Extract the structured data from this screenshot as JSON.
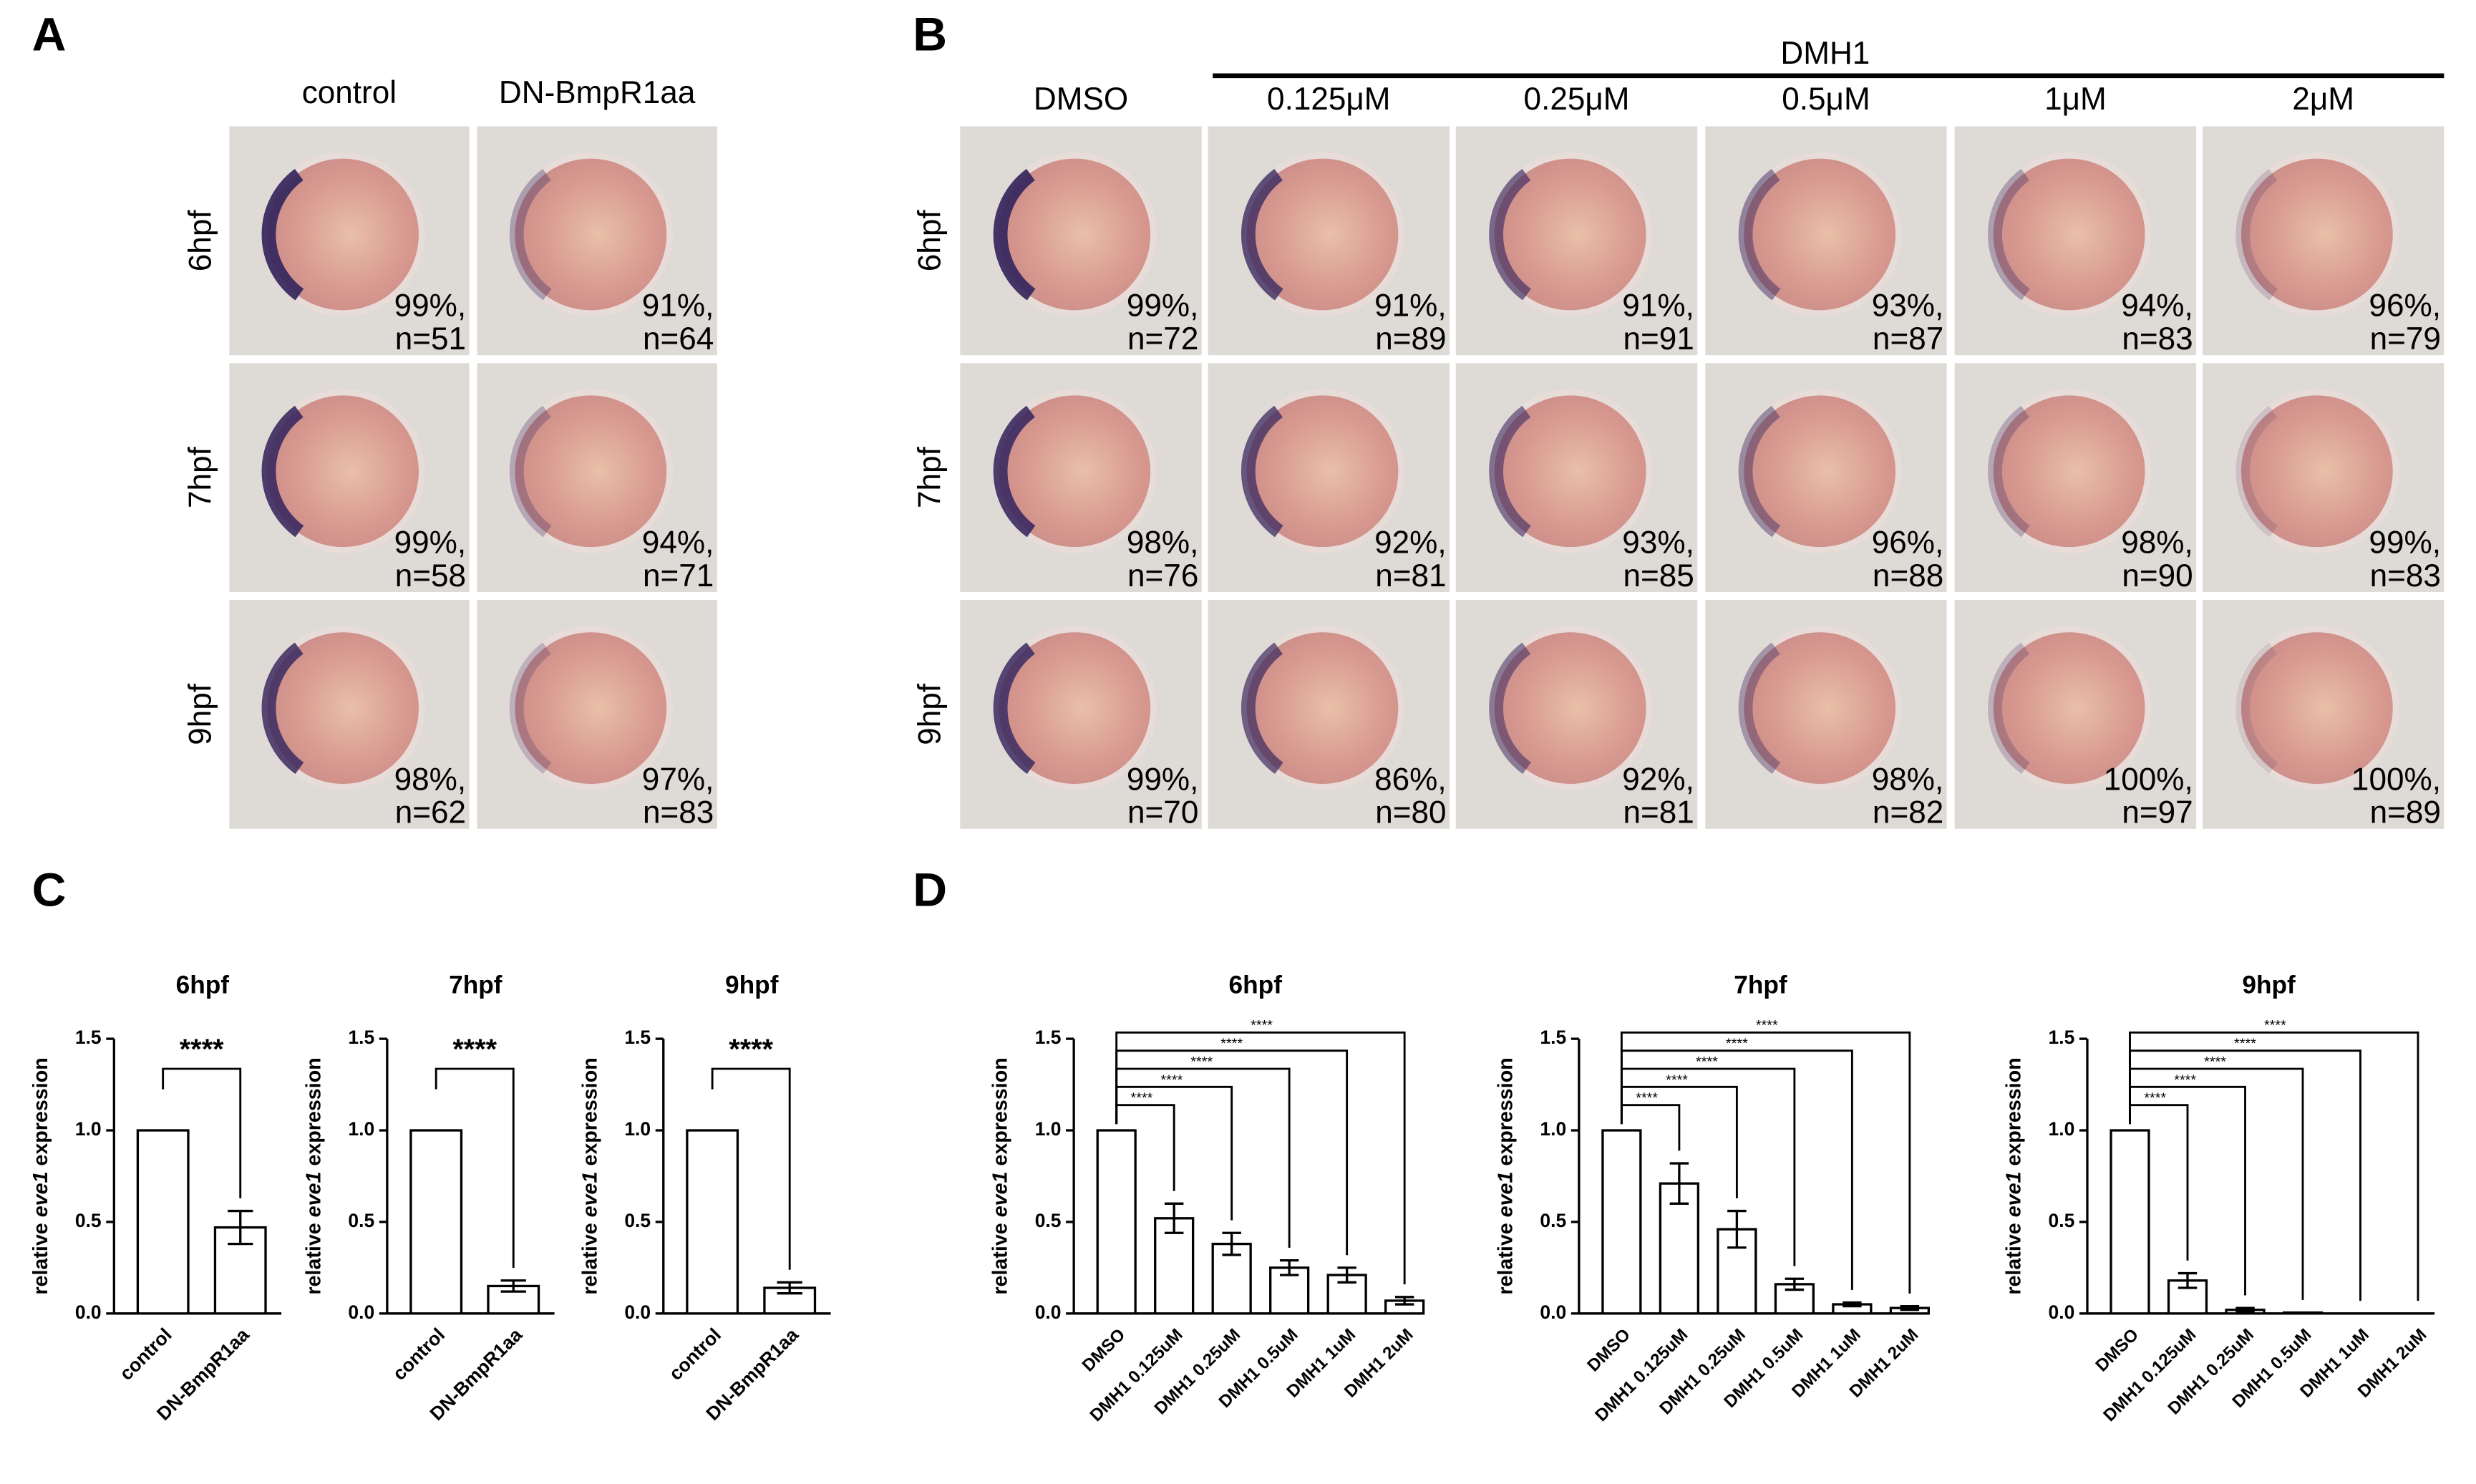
{
  "figure": {
    "A": {
      "label": "A",
      "columns": [
        "control",
        "DN-BmpR1aa"
      ],
      "rows": [
        "6hpf",
        "7hpf",
        "9hpf"
      ],
      "cells": [
        [
          {
            "pct": "99%,",
            "n": "n=51"
          },
          {
            "pct": "91%,",
            "n": "n=64"
          }
        ],
        [
          {
            "pct": "99%,",
            "n": "n=58"
          },
          {
            "pct": "94%,",
            "n": "n=71"
          }
        ],
        [
          {
            "pct": "98%,",
            "n": "n=62"
          },
          {
            "pct": "97%,",
            "n": "n=83"
          }
        ]
      ]
    },
    "B": {
      "label": "B",
      "group": "DMH1",
      "columns": [
        "DMSO",
        "0.125μM",
        "0.25μM",
        "0.5μM",
        "1μM",
        "2μM"
      ],
      "rows": [
        "6hpf",
        "7hpf",
        "9hpf"
      ],
      "cells": [
        [
          {
            "pct": "99%,",
            "n": "n=72"
          },
          {
            "pct": "91%,",
            "n": "n=89"
          },
          {
            "pct": "91%,",
            "n": "n=91"
          },
          {
            "pct": "93%,",
            "n": "n=87"
          },
          {
            "pct": "94%,",
            "n": "n=83"
          },
          {
            "pct": "96%,",
            "n": "n=79"
          }
        ],
        [
          {
            "pct": "98%,",
            "n": "n=76"
          },
          {
            "pct": "92%,",
            "n": "n=81"
          },
          {
            "pct": "93%,",
            "n": "n=85"
          },
          {
            "pct": "96%,",
            "n": "n=88"
          },
          {
            "pct": "98%,",
            "n": "n=90"
          },
          {
            "pct": "99%,",
            "n": "n=83"
          }
        ],
        [
          {
            "pct": "99%,",
            "n": "n=70"
          },
          {
            "pct": "86%,",
            "n": "n=80"
          },
          {
            "pct": "92%,",
            "n": "n=81"
          },
          {
            "pct": "98%,",
            "n": "n=82"
          },
          {
            "pct": "100%,",
            "n": "n=97"
          },
          {
            "pct": "100%,",
            "n": "n=89"
          }
        ]
      ]
    },
    "C": {
      "label": "C"
    },
    "D": {
      "label": "D"
    }
  },
  "chart_data": [
    {
      "type": "bar",
      "title": "6hpf",
      "y_label": {
        "pre": "relative ",
        "italic": "eve1",
        "post": " expression"
      },
      "categories": [
        "control",
        "DN-BmpR1aa"
      ],
      "values": [
        1,
        0.47
      ],
      "errors": [
        0,
        0.09
      ],
      "significance": [
        "****"
      ],
      "color": "#ffffff",
      "edgecolor": "#000000",
      "ylim": [
        0,
        1.5
      ],
      "yticks": [
        {
          "value": 0,
          "label": "0.0"
        },
        {
          "value": 0.5,
          "label": "0.5"
        },
        {
          "value": 1,
          "label": "1.0"
        },
        {
          "value": 1.5,
          "label": "1.5"
        }
      ]
    },
    {
      "type": "bar",
      "title": "7hpf",
      "y_label": {
        "pre": "relative ",
        "italic": "eve1",
        "post": " expression"
      },
      "categories": [
        "control",
        "DN-BmpR1aa"
      ],
      "values": [
        1,
        0.15
      ],
      "errors": [
        0,
        0.03
      ],
      "significance": [
        "****"
      ],
      "color": "#ffffff",
      "edgecolor": "#000000",
      "ylim": [
        0,
        1.5
      ],
      "yticks": [
        {
          "value": 0,
          "label": "0.0"
        },
        {
          "value": 0.5,
          "label": "0.5"
        },
        {
          "value": 1,
          "label": "1.0"
        },
        {
          "value": 1.5,
          "label": "1.5"
        }
      ]
    },
    {
      "type": "bar",
      "title": "9hpf",
      "y_label": {
        "pre": "relative ",
        "italic": "eve1",
        "post": " expression"
      },
      "categories": [
        "control",
        "DN-BmpR1aa"
      ],
      "values": [
        1,
        0.14
      ],
      "errors": [
        0,
        0.03
      ],
      "significance": [
        "****"
      ],
      "color": "#ffffff",
      "edgecolor": "#000000",
      "ylim": [
        0,
        1.5
      ],
      "yticks": [
        {
          "value": 0,
          "label": "0.0"
        },
        {
          "value": 0.5,
          "label": "0.5"
        },
        {
          "value": 1,
          "label": "1.0"
        },
        {
          "value": 1.5,
          "label": "1.5"
        }
      ]
    },
    {
      "type": "bar",
      "title": "6hpf",
      "y_label": {
        "pre": "relative ",
        "italic": "eve1",
        "post": " expression"
      },
      "categories": [
        "DMSO",
        "DMH1 0.125uM",
        "DMH1 0.25uM",
        "DMH1 0.5uM",
        "DMH1 1uM",
        "DMH1 2uM"
      ],
      "values": [
        1,
        0.52,
        0.38,
        0.25,
        0.21,
        0.07
      ],
      "errors": [
        0,
        0.08,
        0.06,
        0.04,
        0.04,
        0.02
      ],
      "significance": [
        "****",
        "****",
        "****",
        "****",
        "****"
      ],
      "color": "#ffffff",
      "edgecolor": "#000000",
      "ylim": [
        0,
        1.5
      ],
      "yticks": [
        {
          "value": 0,
          "label": "0.0"
        },
        {
          "value": 0.5,
          "label": "0.5"
        },
        {
          "value": 1,
          "label": "1.0"
        },
        {
          "value": 1.5,
          "label": "1.5"
        }
      ]
    },
    {
      "type": "bar",
      "title": "7hpf",
      "y_label": {
        "pre": "relative ",
        "italic": "eve1",
        "post": " expression"
      },
      "categories": [
        "DMSO",
        "DMH1 0.125uM",
        "DMH1 0.25uM",
        "DMH1 0.5uM",
        "DMH1 1uM",
        "DMH1 2uM"
      ],
      "values": [
        1,
        0.71,
        0.46,
        0.16,
        0.05,
        0.03
      ],
      "errors": [
        0,
        0.11,
        0.1,
        0.03,
        0.01,
        0.01
      ],
      "significance": [
        "****",
        "****",
        "****",
        "****",
        "****"
      ],
      "color": "#ffffff",
      "edgecolor": "#000000",
      "ylim": [
        0,
        1.5
      ],
      "yticks": [
        {
          "value": 0,
          "label": "0.0"
        },
        {
          "value": 0.5,
          "label": "0.5"
        },
        {
          "value": 1,
          "label": "1.0"
        },
        {
          "value": 1.5,
          "label": "1.5"
        }
      ]
    },
    {
      "type": "bar",
      "title": "9hpf",
      "y_label": {
        "pre": "relative ",
        "italic": "eve1",
        "post": " expression"
      },
      "categories": [
        "DMSO",
        "DMH1 0.125uM",
        "DMH1 0.25uM",
        "DMH1 0.5uM",
        "DMH1 1uM",
        "DMH1 2uM"
      ],
      "values": [
        1,
        0.18,
        0.02,
        0.005,
        0,
        0
      ],
      "errors": [
        0,
        0.04,
        0.01,
        0,
        0,
        0
      ],
      "significance": [
        "****",
        "****",
        "****",
        "****",
        "****"
      ],
      "color": "#ffffff",
      "edgecolor": "#000000",
      "ylim": [
        0,
        1.5
      ],
      "yticks": [
        {
          "value": 0,
          "label": "0.0"
        },
        {
          "value": 0.5,
          "label": "0.5"
        },
        {
          "value": 1,
          "label": "1.0"
        },
        {
          "value": 1.5,
          "label": "1.5"
        }
      ]
    }
  ]
}
